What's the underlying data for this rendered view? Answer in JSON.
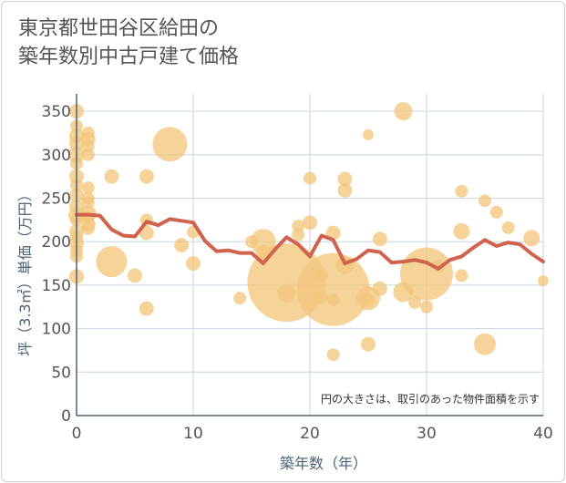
{
  "chart_data": {
    "type": "scatter",
    "title_lines": [
      "東京都世田谷区給田の",
      "築年数別中古戸建て価格"
    ],
    "xlabel": "築年数（年）",
    "ylabel": "坪（3.3㎡）単価（万円）",
    "xlim": [
      0,
      40
    ],
    "ylim": [
      0,
      370
    ],
    "x_ticks": [
      0,
      10,
      20,
      30,
      40
    ],
    "y_ticks": [
      0,
      50,
      100,
      150,
      200,
      250,
      300,
      350
    ],
    "annotation": "円の大きさは、取引のあった物件面積を示す",
    "colors": {
      "bubble": "#f2c77c",
      "line": "#d0624e",
      "grid": "#c8d6e2",
      "axis": "#4a6274"
    },
    "points": [
      {
        "x": 0,
        "y": 350,
        "s": 8
      },
      {
        "x": 0,
        "y": 333,
        "s": 7
      },
      {
        "x": 0,
        "y": 322,
        "s": 8
      },
      {
        "x": 0,
        "y": 313,
        "s": 8
      },
      {
        "x": 0,
        "y": 300,
        "s": 9
      },
      {
        "x": 0,
        "y": 290,
        "s": 7
      },
      {
        "x": 0,
        "y": 275,
        "s": 8
      },
      {
        "x": 0,
        "y": 265,
        "s": 7
      },
      {
        "x": 0,
        "y": 253,
        "s": 8
      },
      {
        "x": 0,
        "y": 240,
        "s": 8
      },
      {
        "x": 0,
        "y": 230,
        "s": 9
      },
      {
        "x": 0,
        "y": 225,
        "s": 7
      },
      {
        "x": 0,
        "y": 212,
        "s": 8
      },
      {
        "x": 0,
        "y": 205,
        "s": 7
      },
      {
        "x": 0,
        "y": 198,
        "s": 8
      },
      {
        "x": 0,
        "y": 190,
        "s": 7
      },
      {
        "x": 0,
        "y": 183,
        "s": 7
      },
      {
        "x": 0,
        "y": 160,
        "s": 8
      },
      {
        "x": 1,
        "y": 325,
        "s": 7
      },
      {
        "x": 1,
        "y": 318,
        "s": 8
      },
      {
        "x": 1,
        "y": 310,
        "s": 7
      },
      {
        "x": 1,
        "y": 300,
        "s": 7
      },
      {
        "x": 1,
        "y": 262,
        "s": 7
      },
      {
        "x": 1,
        "y": 250,
        "s": 7
      },
      {
        "x": 1,
        "y": 245,
        "s": 7
      },
      {
        "x": 1,
        "y": 232,
        "s": 9
      },
      {
        "x": 1,
        "y": 228,
        "s": 7
      },
      {
        "x": 1,
        "y": 220,
        "s": 8
      },
      {
        "x": 1,
        "y": 215,
        "s": 7
      },
      {
        "x": 3,
        "y": 275,
        "s": 8
      },
      {
        "x": 3,
        "y": 177,
        "s": 17
      },
      {
        "x": 5,
        "y": 161,
        "s": 8
      },
      {
        "x": 6,
        "y": 275,
        "s": 8
      },
      {
        "x": 6,
        "y": 225,
        "s": 7
      },
      {
        "x": 6,
        "y": 210,
        "s": 8
      },
      {
        "x": 6,
        "y": 123,
        "s": 8
      },
      {
        "x": 8,
        "y": 312,
        "s": 19
      },
      {
        "x": 9,
        "y": 196,
        "s": 8
      },
      {
        "x": 10,
        "y": 211,
        "s": 7
      },
      {
        "x": 10,
        "y": 175,
        "s": 8
      },
      {
        "x": 14,
        "y": 135,
        "s": 7
      },
      {
        "x": 15,
        "y": 200,
        "s": 7
      },
      {
        "x": 16,
        "y": 200,
        "s": 14
      },
      {
        "x": 16,
        "y": 188,
        "s": 8
      },
      {
        "x": 18,
        "y": 153,
        "s": 43
      },
      {
        "x": 18,
        "y": 141,
        "s": 10
      },
      {
        "x": 19,
        "y": 218,
        "s": 7
      },
      {
        "x": 19,
        "y": 208,
        "s": 7
      },
      {
        "x": 20,
        "y": 273,
        "s": 7
      },
      {
        "x": 20,
        "y": 222,
        "s": 8
      },
      {
        "x": 21,
        "y": 162,
        "s": 7
      },
      {
        "x": 21,
        "y": 136,
        "s": 7
      },
      {
        "x": 22,
        "y": 210,
        "s": 8
      },
      {
        "x": 22,
        "y": 145,
        "s": 40
      },
      {
        "x": 22,
        "y": 133,
        "s": 7
      },
      {
        "x": 22,
        "y": 70,
        "s": 7
      },
      {
        "x": 23,
        "y": 272,
        "s": 8
      },
      {
        "x": 23,
        "y": 259,
        "s": 8
      },
      {
        "x": 23,
        "y": 173,
        "s": 10
      },
      {
        "x": 25,
        "y": 323,
        "s": 6
      },
      {
        "x": 25,
        "y": 135,
        "s": 13
      },
      {
        "x": 25,
        "y": 133,
        "s": 7
      },
      {
        "x": 25,
        "y": 82,
        "s": 8
      },
      {
        "x": 26,
        "y": 203,
        "s": 8
      },
      {
        "x": 26,
        "y": 146,
        "s": 8
      },
      {
        "x": 28,
        "y": 350,
        "s": 10
      },
      {
        "x": 28,
        "y": 142,
        "s": 11
      },
      {
        "x": 29,
        "y": 130,
        "s": 7
      },
      {
        "x": 30,
        "y": 163,
        "s": 29
      },
      {
        "x": 30,
        "y": 125,
        "s": 7
      },
      {
        "x": 31,
        "y": 172,
        "s": 7
      },
      {
        "x": 33,
        "y": 258,
        "s": 7
      },
      {
        "x": 33,
        "y": 212,
        "s": 9
      },
      {
        "x": 33,
        "y": 161,
        "s": 7
      },
      {
        "x": 35,
        "y": 247,
        "s": 7
      },
      {
        "x": 35,
        "y": 82,
        "s": 12
      },
      {
        "x": 36,
        "y": 234,
        "s": 7
      },
      {
        "x": 37,
        "y": 216,
        "s": 7
      },
      {
        "x": 39,
        "y": 204,
        "s": 9
      },
      {
        "x": 40,
        "y": 155,
        "s": 6
      }
    ],
    "line": [
      {
        "x": 0,
        "y": 231
      },
      {
        "x": 1,
        "y": 231
      },
      {
        "x": 2,
        "y": 230
      },
      {
        "x": 3,
        "y": 214
      },
      {
        "x": 4,
        "y": 207
      },
      {
        "x": 5,
        "y": 206
      },
      {
        "x": 6,
        "y": 223
      },
      {
        "x": 7,
        "y": 219
      },
      {
        "x": 8,
        "y": 226
      },
      {
        "x": 9,
        "y": 224
      },
      {
        "x": 10,
        "y": 222
      },
      {
        "x": 11,
        "y": 201
      },
      {
        "x": 12,
        "y": 189
      },
      {
        "x": 13,
        "y": 190
      },
      {
        "x": 14,
        "y": 187
      },
      {
        "x": 15,
        "y": 187
      },
      {
        "x": 16,
        "y": 175
      },
      {
        "x": 17,
        "y": 191
      },
      {
        "x": 18,
        "y": 205
      },
      {
        "x": 19,
        "y": 197
      },
      {
        "x": 20,
        "y": 183
      },
      {
        "x": 21,
        "y": 207
      },
      {
        "x": 22,
        "y": 202
      },
      {
        "x": 23,
        "y": 175
      },
      {
        "x": 24,
        "y": 180
      },
      {
        "x": 25,
        "y": 190
      },
      {
        "x": 26,
        "y": 188
      },
      {
        "x": 27,
        "y": 176
      },
      {
        "x": 28,
        "y": 177
      },
      {
        "x": 29,
        "y": 179
      },
      {
        "x": 30,
        "y": 176
      },
      {
        "x": 31,
        "y": 169
      },
      {
        "x": 32,
        "y": 179
      },
      {
        "x": 33,
        "y": 183
      },
      {
        "x": 34,
        "y": 193
      },
      {
        "x": 35,
        "y": 202
      },
      {
        "x": 36,
        "y": 195
      },
      {
        "x": 37,
        "y": 199
      },
      {
        "x": 38,
        "y": 197
      },
      {
        "x": 39,
        "y": 186
      },
      {
        "x": 40,
        "y": 177
      }
    ]
  }
}
